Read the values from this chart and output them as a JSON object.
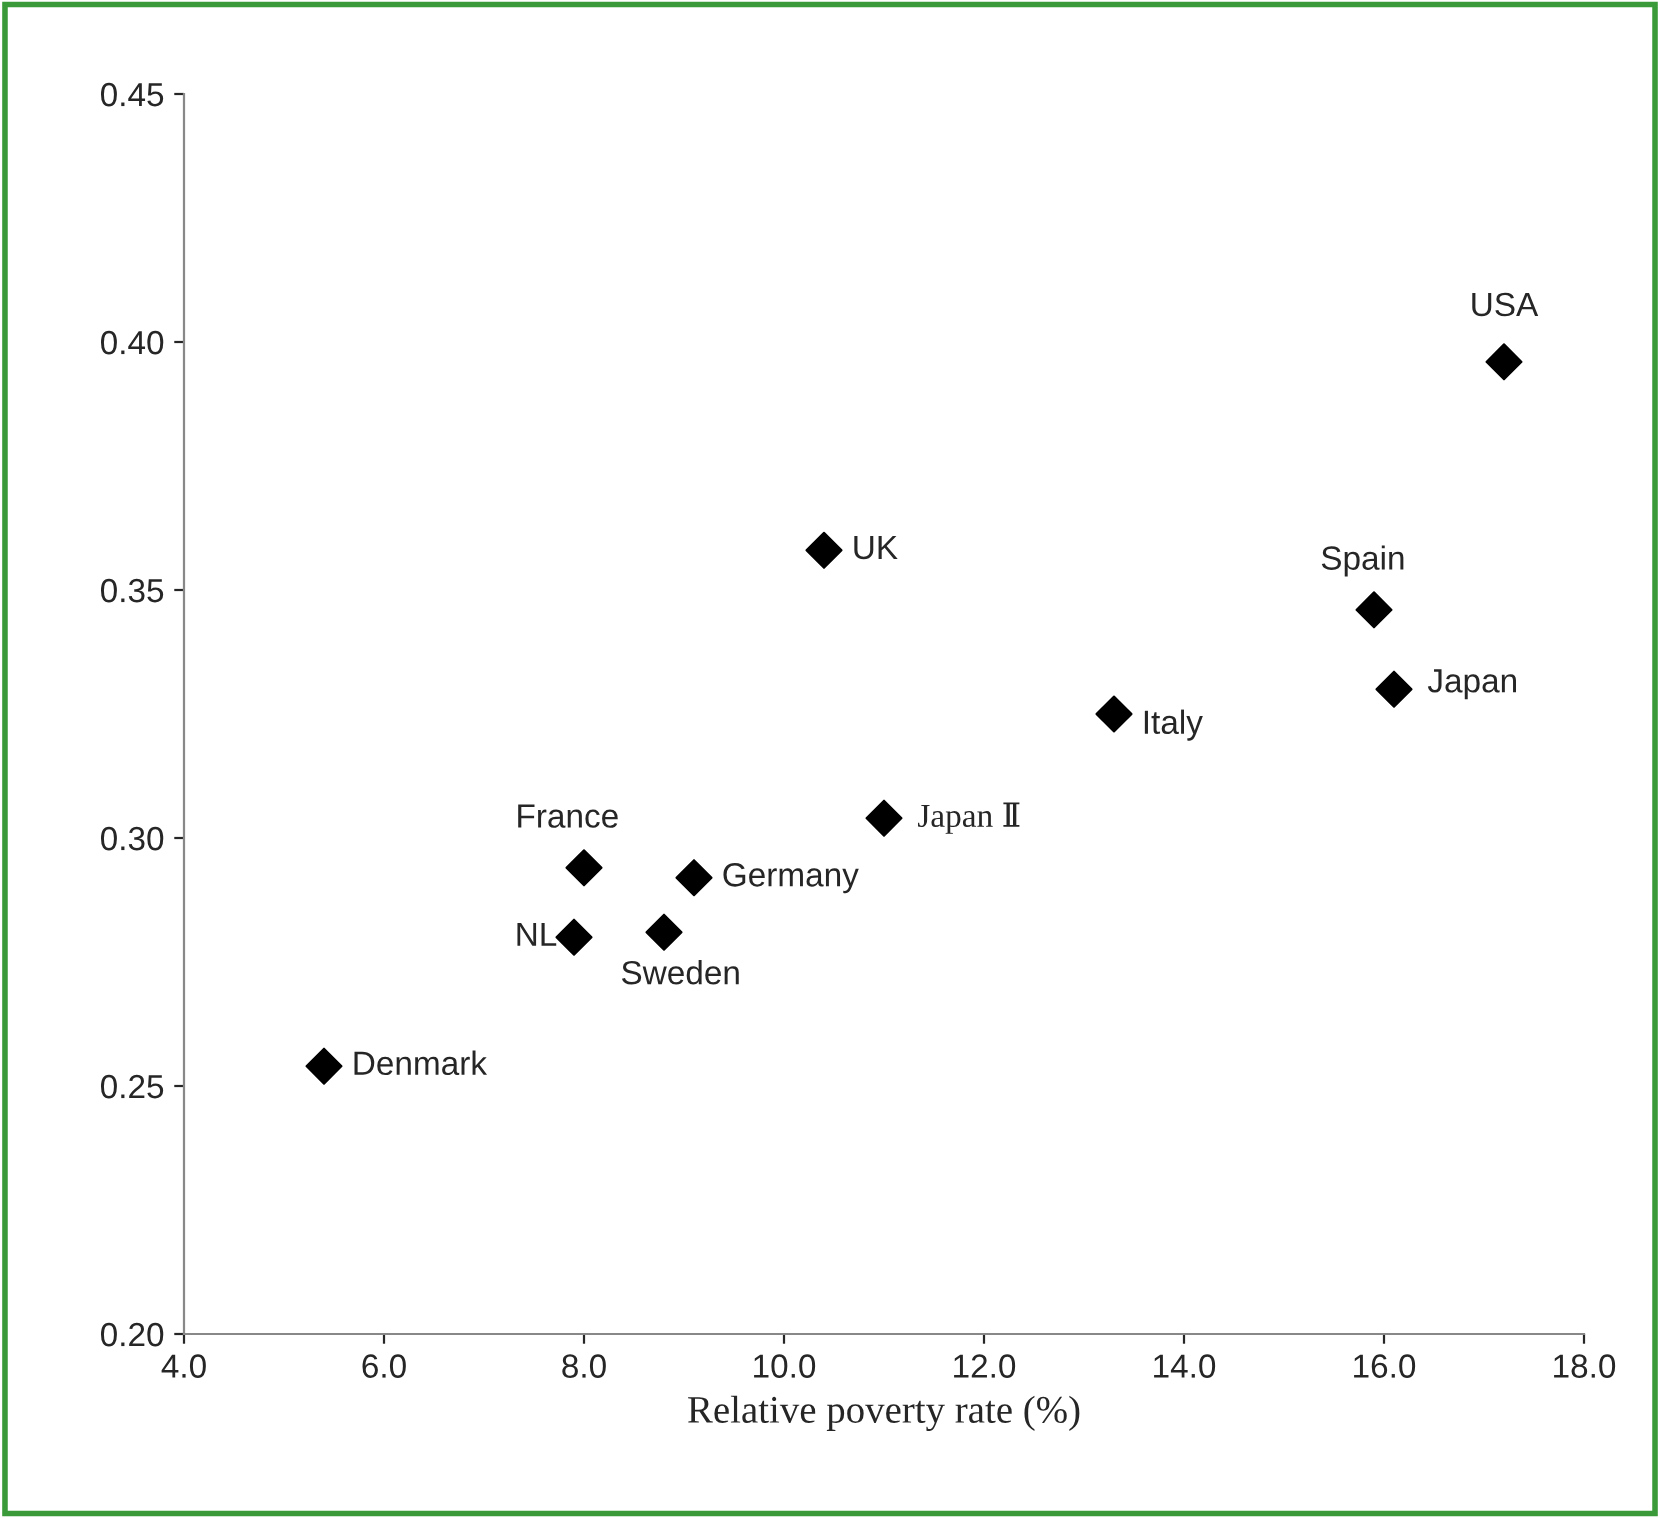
{
  "chart_data": {
    "type": "scatter",
    "xlabel": "Relative poverty rate (%)",
    "color": "#000000",
    "marker": "diamond",
    "grid": false,
    "x": [
      17.2,
      10.4,
      15.9,
      16.1,
      13.3,
      11.0,
      8.0,
      9.1,
      7.9,
      8.8,
      5.4
    ],
    "values": [
      0.396,
      0.358,
      0.346,
      0.33,
      0.325,
      0.304,
      0.294,
      0.292,
      0.28,
      0.281,
      0.254
    ],
    "annotations": [
      {
        "text": "USA",
        "x": 17.2,
        "y": 0.396
      },
      {
        "text": "UK",
        "x": 10.4,
        "y": 0.358
      },
      {
        "text": "Spain",
        "x": 15.9,
        "y": 0.346
      },
      {
        "text": "Japan",
        "x": 16.1,
        "y": 0.33
      },
      {
        "text": "Italy",
        "x": 13.3,
        "y": 0.325
      },
      {
        "text": "Japan Ⅱ",
        "x": 11.0,
        "y": 0.304
      },
      {
        "text": "France",
        "x": 8.0,
        "y": 0.294
      },
      {
        "text": "Germany",
        "x": 9.1,
        "y": 0.292
      },
      {
        "text": "NL",
        "x": 7.9,
        "y": 0.28
      },
      {
        "text": "Sweden",
        "x": 8.8,
        "y": 0.281
      },
      {
        "text": "Denmark",
        "x": 5.4,
        "y": 0.254
      }
    ],
    "xlim": [
      4.0,
      18.0
    ],
    "xticks": [
      {
        "value": 4.0,
        "label": "4.0"
      },
      {
        "value": 6.0,
        "label": "6.0"
      },
      {
        "value": 8.0,
        "label": "8.0"
      },
      {
        "value": 10.0,
        "label": "10.0"
      },
      {
        "value": 12.0,
        "label": "12.0"
      },
      {
        "value": 14.0,
        "label": "14.0"
      },
      {
        "value": 16.0,
        "label": "16.0"
      },
      {
        "value": 18.0,
        "label": "18.0"
      }
    ],
    "ylim": [
      0.2,
      0.45
    ],
    "yticks": [
      {
        "value": 0.2,
        "label": "0.20"
      },
      {
        "value": 0.25,
        "label": "0.25"
      },
      {
        "value": 0.3,
        "label": "0.30"
      },
      {
        "value": 0.35,
        "label": "0.35"
      },
      {
        "value": 0.4,
        "label": "0.40"
      },
      {
        "value": 0.45,
        "label": "0.45"
      }
    ]
  }
}
